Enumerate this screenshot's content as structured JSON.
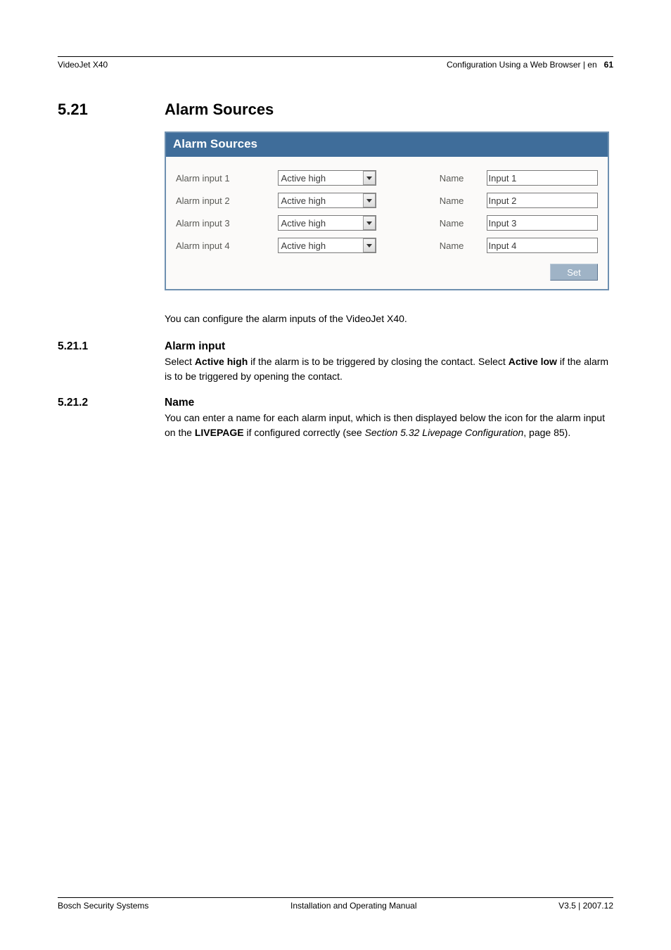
{
  "header": {
    "left": "VideoJet X40",
    "right_text": "Configuration Using a Web Browser | en",
    "page_number": "61"
  },
  "section": {
    "number": "5.21",
    "title": "Alarm Sources"
  },
  "panel": {
    "title": "Alarm Sources",
    "name_col_label": "Name",
    "rows": [
      {
        "label": "Alarm input 1",
        "select": "Active high",
        "name_value": "Input 1"
      },
      {
        "label": "Alarm input 2",
        "select": "Active high",
        "name_value": "Input 2"
      },
      {
        "label": "Alarm input 3",
        "select": "Active high",
        "name_value": "Input 3"
      },
      {
        "label": "Alarm input 4",
        "select": "Active high",
        "name_value": "Input 4"
      }
    ],
    "set_button": "Set"
  },
  "intro_text": "You can configure the alarm inputs of the VideoJet X40.",
  "sub1": {
    "number": "5.21.1",
    "title": "Alarm input",
    "pre": "Select ",
    "bold1": "Active high",
    "mid": " if the alarm is to be triggered by closing the contact. Select ",
    "bold2": "Active low",
    "post": " if the alarm is to be triggered by opening the contact."
  },
  "sub2": {
    "number": "5.21.2",
    "title": "Name",
    "pre": "You can enter a name for each alarm input, which is then displayed below the icon for the alarm input on the ",
    "bold1": "LIVEPAGE",
    "mid": " if configured correctly (see ",
    "italic1": "Section 5.32 Livepage Configuration",
    "post": ", page 85)."
  },
  "footer": {
    "left": "Bosch Security Systems",
    "center": "Installation and Operating Manual",
    "right": "V3.5 | 2007.12"
  },
  "colors": {
    "panel_header_bg": "#3f6d9a",
    "panel_border": "#6e90b0",
    "panel_body_bg": "#fbfaf9",
    "set_btn_bg": "#9fb3c6",
    "label_color": "#5a5a56"
  }
}
